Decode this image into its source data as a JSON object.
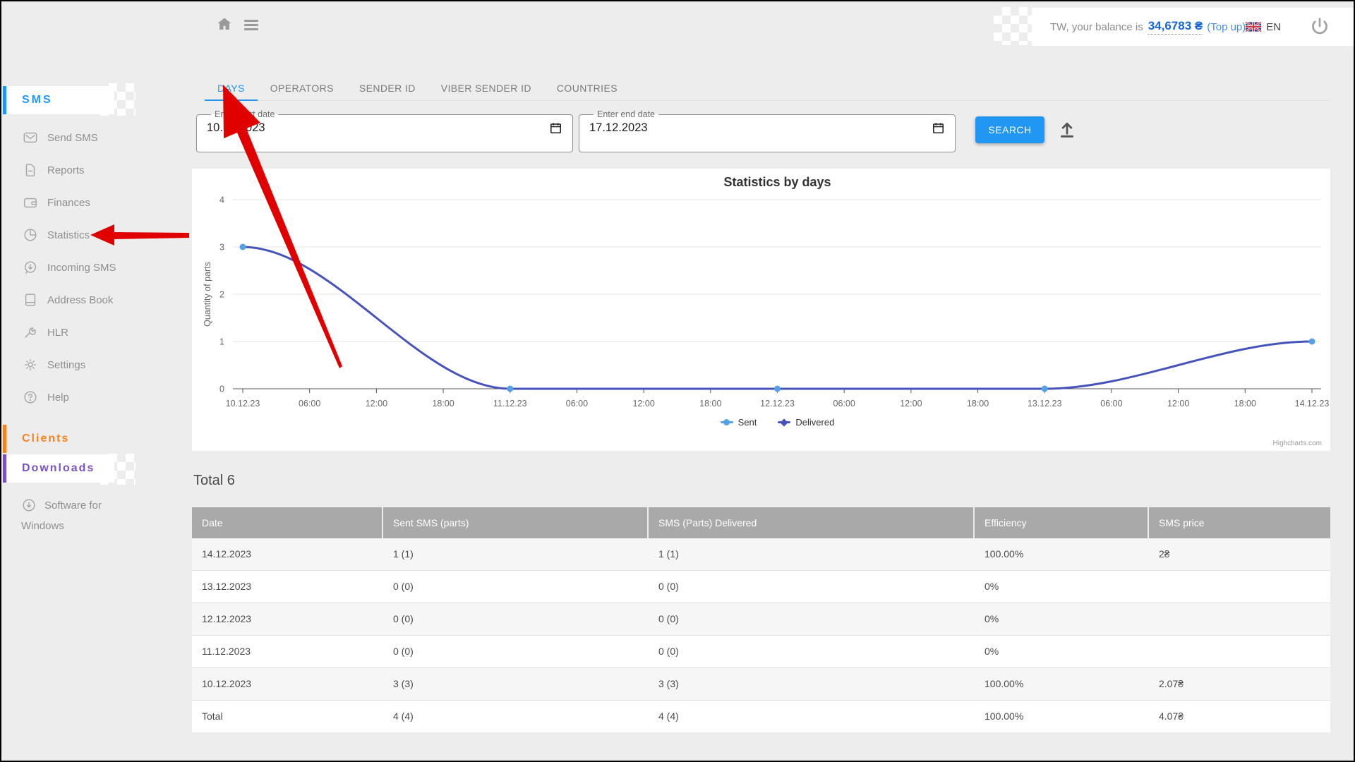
{
  "topbar": {
    "balance_prefix": "TW, your balance is",
    "balance_amount": "34,6783 ₴",
    "topup": "(Top up)",
    "language": "EN"
  },
  "sidebar": {
    "sms_header": "SMS",
    "items": [
      {
        "label": "Send SMS",
        "icon": "mail-icon"
      },
      {
        "label": "Reports",
        "icon": "file-icon"
      },
      {
        "label": "Finances",
        "icon": "wallet-icon"
      },
      {
        "label": "Statistics",
        "icon": "pie-chart-icon"
      },
      {
        "label": "Incoming SMS",
        "icon": "incoming-bubble-icon"
      },
      {
        "label": "Address Book",
        "icon": "book-icon"
      },
      {
        "label": "HLR",
        "icon": "wrench-icon"
      },
      {
        "label": "Settings",
        "icon": "gear-icon"
      },
      {
        "label": "Help",
        "icon": "question-icon"
      }
    ],
    "clients_header": "Clients",
    "downloads_header": "Downloads",
    "software_item": "Software for Windows"
  },
  "tabs": [
    {
      "label": "DAYS",
      "active": true
    },
    {
      "label": "OPERATORS",
      "active": false
    },
    {
      "label": "SENDER ID",
      "active": false
    },
    {
      "label": "VIBER SENDER ID",
      "active": false
    },
    {
      "label": "COUNTRIES",
      "active": false
    }
  ],
  "filters": {
    "start": {
      "label": "Enter start date",
      "value": "10.12.2023"
    },
    "end": {
      "label": "Enter end date",
      "value": "17.12.2023"
    },
    "search_label": "SEARCH"
  },
  "chart_data": {
    "type": "line",
    "title": "Statistics by days",
    "xlabel": "",
    "ylabel": "Quantity of parts",
    "ylim": [
      0,
      4
    ],
    "tick_interval": 1,
    "grid": true,
    "legend_position": "bottom",
    "x_ticks": [
      "10.12.23",
      "06:00",
      "12:00",
      "18:00",
      "11.12.23",
      "06:00",
      "12:00",
      "18:00",
      "12.12.23",
      "06:00",
      "12:00",
      "18:00",
      "13.12.23",
      "06:00",
      "12:00",
      "18:00",
      "14.12.23"
    ],
    "day_point_indices": [
      0,
      4,
      8,
      12,
      16
    ],
    "categories": [
      "10.12.23",
      "11.12.23",
      "12.12.23",
      "13.12.23",
      "14.12.23"
    ],
    "series": [
      {
        "name": "Sent",
        "color": "#56a0e8",
        "marker": "circle",
        "values": [
          3,
          0,
          0,
          0,
          1
        ]
      },
      {
        "name": "Delivered",
        "color": "#4753bc",
        "marker": "diamond",
        "values": [
          3,
          0,
          0,
          0,
          1
        ]
      }
    ],
    "credit": "Highcharts.com"
  },
  "table": {
    "title": "Total 6",
    "columns": [
      "Date",
      "Sent SMS (parts)",
      "SMS (Parts) Delivered",
      "Efficiency",
      "SMS price"
    ],
    "rows": [
      {
        "cells": [
          "14.12.2023",
          "1 (1)",
          "1 (1)",
          "100.00%",
          "2₴"
        ]
      },
      {
        "cells": [
          "13.12.2023",
          "0 (0)",
          "0 (0)",
          "0%",
          ""
        ]
      },
      {
        "cells": [
          "12.12.2023",
          "0 (0)",
          "0 (0)",
          "0%",
          ""
        ]
      },
      {
        "cells": [
          "11.12.2023",
          "0 (0)",
          "0 (0)",
          "0%",
          ""
        ]
      },
      {
        "cells": [
          "10.12.2023",
          "3 (3)",
          "3 (3)",
          "100.00%",
          "2.07₴"
        ]
      },
      {
        "cells": [
          "Total",
          "4 (4)",
          "4 (4)",
          "100.00%",
          "4.07₴"
        ]
      }
    ]
  }
}
